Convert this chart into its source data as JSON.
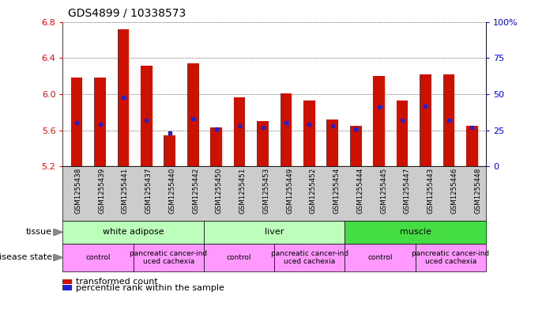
{
  "title": "GDS4899 / 10338573",
  "samples": [
    "GSM1255438",
    "GSM1255439",
    "GSM1255441",
    "GSM1255437",
    "GSM1255440",
    "GSM1255442",
    "GSM1255450",
    "GSM1255451",
    "GSM1255453",
    "GSM1255449",
    "GSM1255452",
    "GSM1255454",
    "GSM1255444",
    "GSM1255445",
    "GSM1255447",
    "GSM1255443",
    "GSM1255446",
    "GSM1255448"
  ],
  "transformed_count": [
    6.18,
    6.18,
    6.72,
    6.31,
    5.54,
    6.34,
    5.63,
    5.96,
    5.7,
    6.01,
    5.93,
    5.72,
    5.65,
    6.2,
    5.93,
    6.22,
    6.22,
    5.65
  ],
  "percentile_rank": [
    30,
    29,
    48,
    32,
    23,
    33,
    26,
    28,
    27,
    30,
    29,
    28,
    26,
    41,
    32,
    42,
    32,
    27
  ],
  "ymin": 5.2,
  "ymax": 6.8,
  "yticks_left": [
    5.2,
    5.6,
    6.0,
    6.4,
    6.8
  ],
  "yticks_right": [
    0,
    25,
    50,
    75,
    100
  ],
  "bar_color": "#CC1100",
  "percentile_color": "#2222CC",
  "tissue_groups": [
    {
      "label": "white adipose",
      "start": 0,
      "end": 6,
      "color": "#bbffbb"
    },
    {
      "label": "liver",
      "start": 6,
      "end": 12,
      "color": "#bbffbb"
    },
    {
      "label": "muscle",
      "start": 12,
      "end": 18,
      "color": "#44dd44"
    }
  ],
  "disease_groups": [
    {
      "label": "control",
      "start": 0,
      "end": 3,
      "color": "#ff99ff"
    },
    {
      "label": "pancreatic cancer-ind\nuced cachexia",
      "start": 3,
      "end": 6,
      "color": "#ff99ff"
    },
    {
      "label": "control",
      "start": 6,
      "end": 9,
      "color": "#ff99ff"
    },
    {
      "label": "pancreatic cancer-ind\nuced cachexia",
      "start": 9,
      "end": 12,
      "color": "#ff99ff"
    },
    {
      "label": "control",
      "start": 12,
      "end": 15,
      "color": "#ff99ff"
    },
    {
      "label": "pancreatic cancer-ind\nuced cachexia",
      "start": 15,
      "end": 18,
      "color": "#ff99ff"
    }
  ],
  "sample_bg_color": "#cccccc"
}
